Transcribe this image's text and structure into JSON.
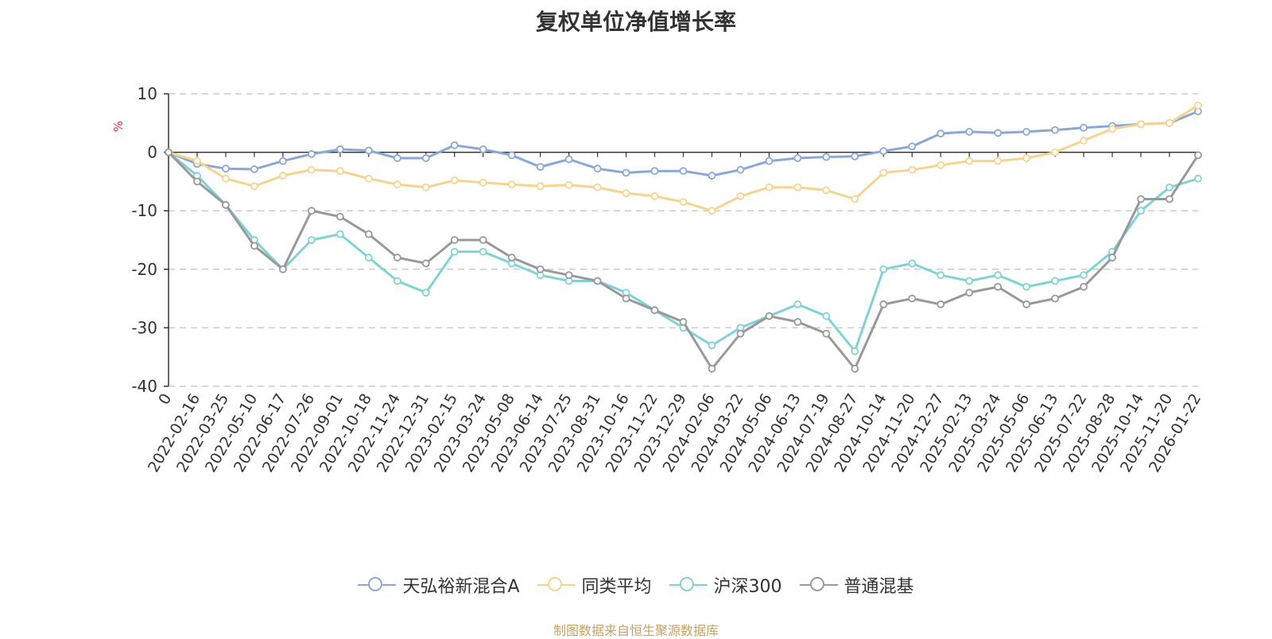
{
  "title": "复权单位净值增长率",
  "unit_label": "%",
  "source": "制图数据来自恒生聚源数据库",
  "chart_data": {
    "type": "line",
    "title": "复权单位净值增长率",
    "ylabel": "%",
    "ylim": [
      -40,
      10
    ],
    "yticks": [
      10,
      0,
      -10,
      -20,
      -30,
      -40
    ],
    "categories": [
      "0",
      "2022-02-16",
      "2022-03-25",
      "2022-05-10",
      "2022-06-17",
      "2022-07-26",
      "2022-09-01",
      "2022-10-18",
      "2022-11-24",
      "2022-12-31",
      "2023-02-15",
      "2023-03-24",
      "2023-05-08",
      "2023-06-14",
      "2023-07-25",
      "2023-08-31",
      "2023-10-16",
      "2023-11-22",
      "2023-12-29",
      "2024-02-06",
      "2024-03-22",
      "2024-05-06",
      "2024-06-13",
      "2024-07-19",
      "2024-08-27",
      "2024-10-14",
      "2024-11-20",
      "2024-12-27",
      "2025-02-13",
      "2025-03-24",
      "2025-05-06",
      "2025-06-13",
      "2025-07-22",
      "2025-08-28",
      "2025-10-14",
      "2025-11-20",
      "2026-01-22"
    ],
    "series": [
      {
        "name": "天弘裕新混合A",
        "color": "#8aa8d6",
        "values": [
          0,
          -2,
          -2.8,
          -2.9,
          -1.5,
          -0.3,
          0.5,
          0.3,
          -1,
          -1,
          1.2,
          0.5,
          -0.5,
          -2.5,
          -1.2,
          -2.8,
          -3.5,
          -3.2,
          -3.2,
          -4,
          -3,
          -1.5,
          -1,
          -0.8,
          -0.7,
          0.2,
          1,
          3.2,
          3.5,
          3.3,
          3.5,
          3.8,
          4.2,
          4.5,
          4.8,
          5,
          7
        ]
      },
      {
        "name": "同类平均",
        "color": "#f5d48f",
        "values": [
          0,
          -1.5,
          -4.5,
          -5.8,
          -4,
          -3,
          -3.2,
          -4.5,
          -5.5,
          -6,
          -4.8,
          -5.2,
          -5.5,
          -5.8,
          -5.6,
          -6,
          -7,
          -7.5,
          -8.5,
          -10,
          -7.5,
          -6,
          -6,
          -6.5,
          -8,
          -3.5,
          -3,
          -2.2,
          -1.5,
          -1.5,
          -1,
          0,
          2,
          4,
          4.8,
          5,
          8
        ]
      },
      {
        "name": "沪深300",
        "color": "#7fd3d6",
        "values": [
          0,
          -4,
          -9,
          -15,
          -20,
          -15,
          -14,
          -18,
          -22,
          -24,
          -17,
          -17,
          -19,
          -21,
          -22,
          -22,
          -24,
          -27,
          -30,
          -33,
          -30,
          -28,
          -26,
          -28,
          -34,
          -20,
          -19,
          -21,
          -22,
          -21,
          -23,
          -22,
          -21,
          -17,
          -10,
          -6,
          -4.5
        ]
      },
      {
        "name": "普通混基",
        "color": "#999999",
        "values": [
          0,
          -5,
          -9,
          -16,
          -20,
          -10,
          -11,
          -14,
          -18,
          -19,
          -15,
          -15,
          -18,
          -20,
          -21,
          -22,
          -25,
          -27,
          -29,
          -37,
          -31,
          -28,
          -29,
          -31,
          -37,
          -26,
          -25,
          -26,
          -24,
          -23,
          -26,
          -25,
          -23,
          -18,
          -8,
          -8,
          -0.5
        ]
      }
    ]
  }
}
